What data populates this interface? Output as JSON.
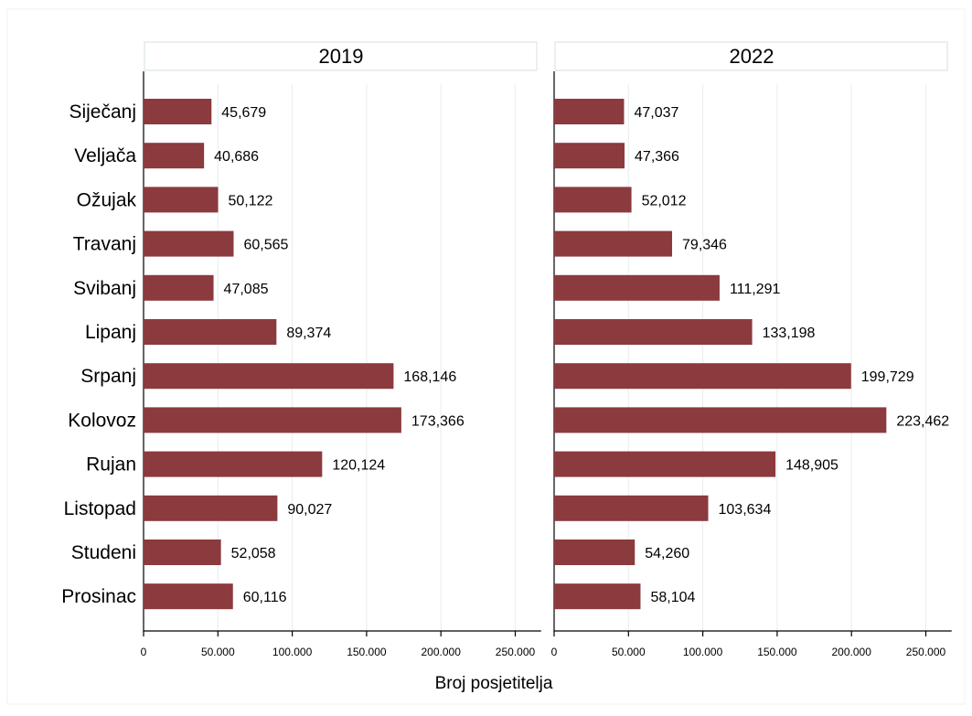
{
  "chart_data": {
    "type": "bar",
    "orientation": "horizontal",
    "panels": [
      "2019",
      "2022"
    ],
    "categories": [
      "Siječanj",
      "Veljača",
      "Ožujak",
      "Travanj",
      "Svibanj",
      "Lipanj",
      "Srpanj",
      "Kolovoz",
      "Rujan",
      "Listopad",
      "Studeni",
      "Prosinac"
    ],
    "series": [
      {
        "name": "2019",
        "values": [
          45679,
          40686,
          50122,
          60565,
          47085,
          89374,
          168146,
          173366,
          120124,
          90027,
          52058,
          60116
        ]
      },
      {
        "name": "2022",
        "values": [
          47037,
          47366,
          52012,
          79346,
          111291,
          133198,
          199729,
          223462,
          148905,
          103634,
          54260,
          58104
        ]
      }
    ],
    "data_labels": {
      "2019": [
        "45,679",
        "40,686",
        "50,122",
        "60,565",
        "47,085",
        "89,374",
        "168,146",
        "173,366",
        "120,124",
        "90,027",
        "52,058",
        "60,116"
      ],
      "2022": [
        "47,037",
        "47,366",
        "52,012",
        "79,346",
        "111,291",
        "133,198",
        "199,729",
        "223,462",
        "148,905",
        "103,634",
        "54,260",
        "58,104"
      ]
    },
    "xlabel": "Broj posjetitelja",
    "ylabel": "",
    "xlim": [
      0,
      260000
    ],
    "xticks": [
      0,
      50000,
      100000,
      150000,
      200000,
      250000
    ],
    "xtick_labels": [
      "0",
      "50.000",
      "100.000",
      "150.000",
      "200.000",
      "250.000"
    ],
    "grid": true,
    "bar_color": "#8b3a3e"
  }
}
